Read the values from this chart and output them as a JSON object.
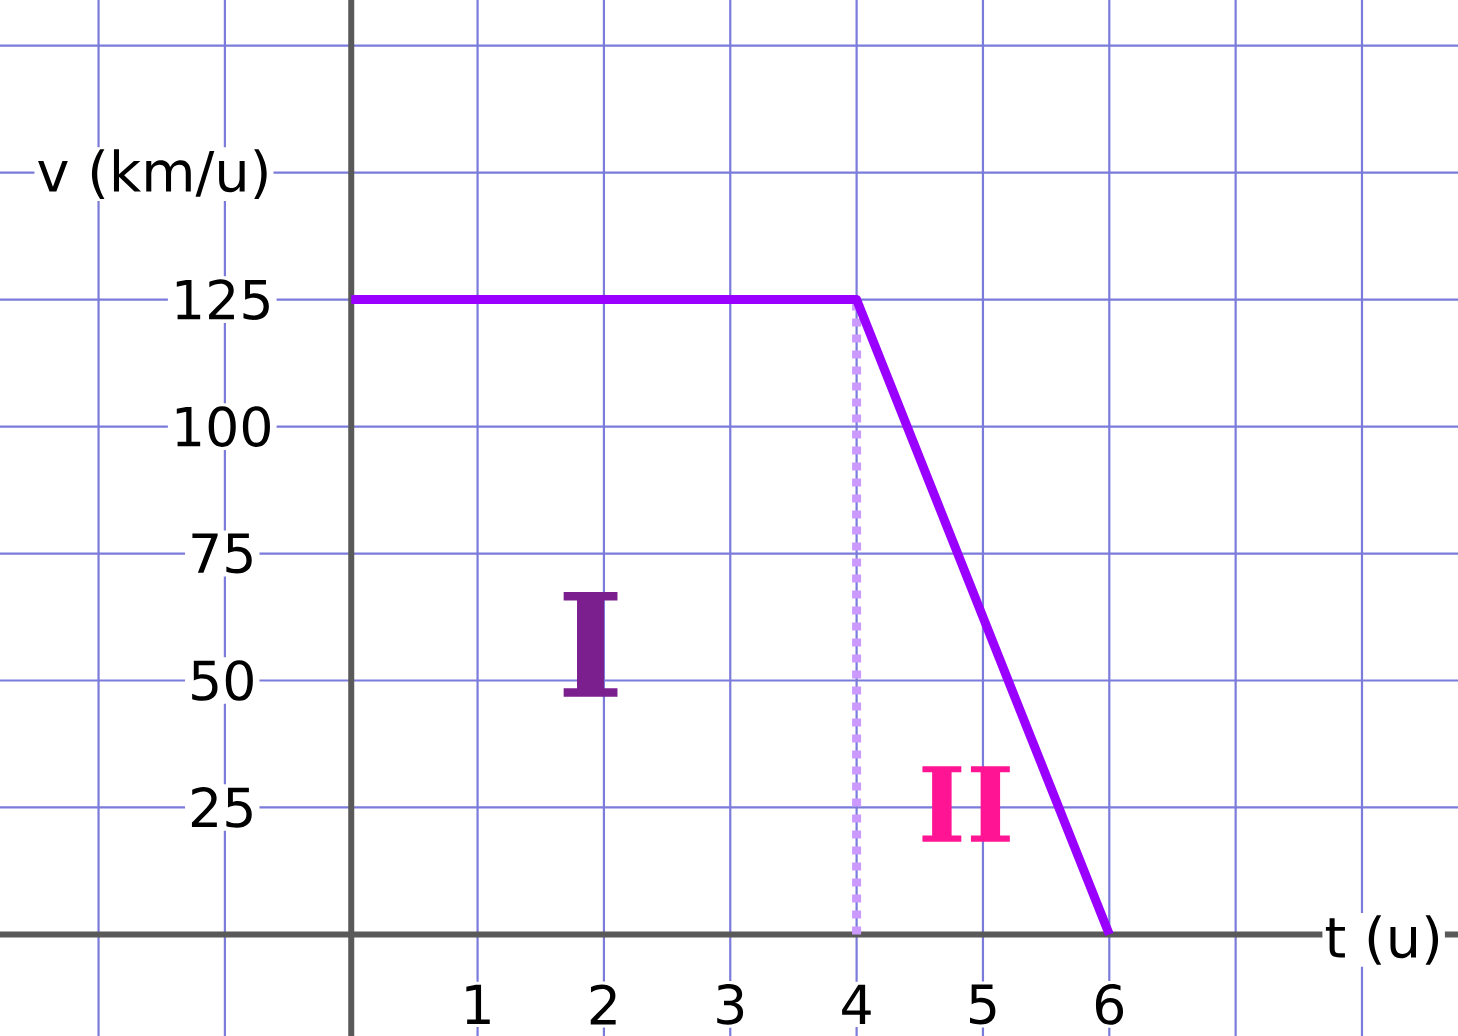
{
  "chart_data": {
    "type": "line",
    "xlabel": "t (u)",
    "ylabel": "v (km/u)",
    "xlim": [
      -2.78,
      8.76
    ],
    "ylim": [
      -20,
      184
    ],
    "xticks": [
      {
        "value": -2,
        "label": null
      },
      {
        "value": -1,
        "label": null
      },
      1,
      2,
      3,
      4,
      5,
      6,
      {
        "value": 7,
        "label": null
      },
      {
        "value": 8,
        "label": null
      }
    ],
    "yticks": [
      25,
      50,
      75,
      100,
      125,
      {
        "value": 150,
        "label": null
      },
      {
        "value": 175,
        "label": null
      }
    ],
    "grid": true,
    "series": [
      {
        "x": [
          4,
          4
        ],
        "values": [
          0,
          125
        ],
        "color": "#cc99ff",
        "line_style": "dashed"
      },
      {
        "x": [
          0,
          4,
          6
        ],
        "values": [
          125,
          125,
          0
        ],
        "color": "#9a00ff",
        "line_style": "solid"
      }
    ],
    "annotations": [
      "I",
      "II"
    ]
  }
}
